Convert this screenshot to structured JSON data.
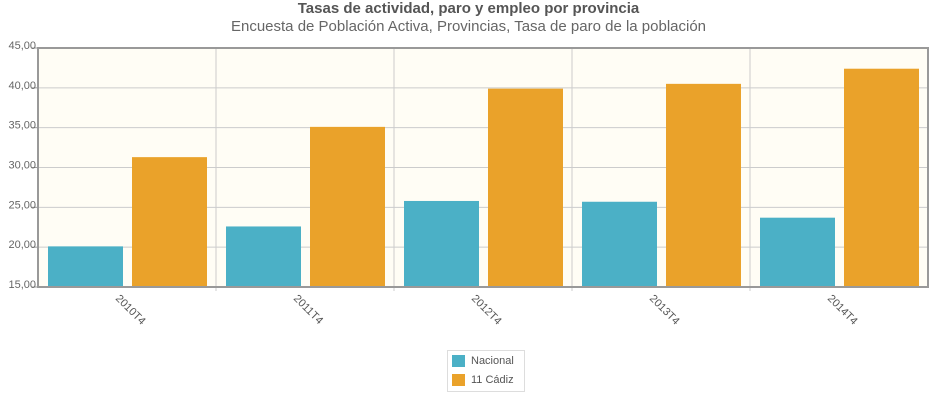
{
  "chart_data": {
    "type": "bar",
    "title": "Tasas de actividad, paro y empleo por provincia",
    "subtitle": "Encuesta de Población Activa, Provincias,  Tasa de paro de la población",
    "categories": [
      "2010T4",
      "2011T4",
      "2012T4",
      "2013T4",
      "2014T4"
    ],
    "series": [
      {
        "name": "Nacional",
        "color": "#4bb0c6",
        "values": [
          20.1,
          22.6,
          25.8,
          25.7,
          23.7
        ]
      },
      {
        "name": "11 Cádiz",
        "color": "#eaa22a",
        "values": [
          31.3,
          35.1,
          39.9,
          40.5,
          42.4
        ]
      }
    ],
    "ylim": [
      15,
      45
    ],
    "yticks": [
      15,
      20,
      25,
      30,
      35,
      40,
      45
    ],
    "ytick_labels": [
      "15,00",
      "20,00",
      "25,00",
      "30,00",
      "35,00",
      "40,00",
      "45,00"
    ],
    "xlabel": "",
    "ylabel": "",
    "grid": true,
    "legend": "bottom-center"
  }
}
